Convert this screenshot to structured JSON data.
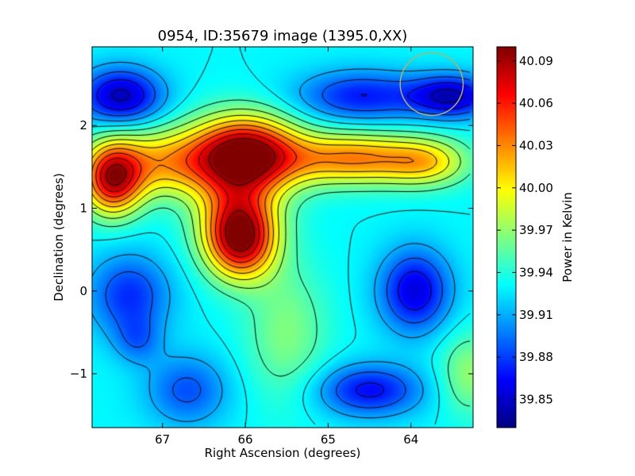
{
  "chart_data": {
    "type": "heatmap",
    "title": "0954, ID:35679 image (1395.0,XX)",
    "xlabel": "Right Ascension (degrees)",
    "ylabel": "Declination (degrees)",
    "xlim": [
      67.85,
      63.25
    ],
    "ylim": [
      -1.65,
      2.95
    ],
    "x_ticks": [
      67,
      66,
      65,
      64
    ],
    "x_tick_labels": [
      "67",
      "66",
      "65",
      "64"
    ],
    "y_ticks": [
      2,
      1,
      0,
      -1
    ],
    "y_tick_labels": [
      "2",
      "1",
      "0",
      "−1"
    ],
    "colormap": "jet",
    "contours": true,
    "grid": false,
    "colorbar": {
      "label": "Power in Kelvin",
      "range": [
        39.83,
        40.1
      ],
      "ticks": [
        40.09,
        40.06,
        40.03,
        40.0,
        39.97,
        39.94,
        39.91,
        39.88,
        39.85
      ],
      "tick_labels": [
        "40.09",
        "40.06",
        "40.03",
        "40.00",
        "39.97",
        "39.94",
        "39.91",
        "39.88",
        "39.85"
      ]
    },
    "baseline": 39.93,
    "features": [
      {
        "ra": 67.5,
        "dec": 2.35,
        "amplitude": -0.085,
        "sigma_ra": 0.35,
        "sigma_dec": 0.24
      },
      {
        "ra": 64.6,
        "dec": 2.35,
        "amplitude": -0.06,
        "sigma_ra": 0.55,
        "sigma_dec": 0.22
      },
      {
        "ra": 63.5,
        "dec": 2.35,
        "amplitude": -0.08,
        "sigma_ra": 0.35,
        "sigma_dec": 0.18
      },
      {
        "ra": 67.6,
        "dec": 1.35,
        "amplitude": 0.14,
        "sigma_ra": 0.25,
        "sigma_dec": 0.3
      },
      {
        "ra": 67.0,
        "dec": 1.55,
        "amplitude": 0.08,
        "sigma_ra": 0.5,
        "sigma_dec": 0.28
      },
      {
        "ra": 66.0,
        "dec": 1.65,
        "amplitude": 0.17,
        "sigma_ra": 0.45,
        "sigma_dec": 0.32
      },
      {
        "ra": 66.1,
        "dec": 0.9,
        "amplitude": 0.08,
        "sigma_ra": 0.35,
        "sigma_dec": 0.4
      },
      {
        "ra": 66.05,
        "dec": 0.6,
        "amplitude": 0.12,
        "sigma_ra": 0.28,
        "sigma_dec": 0.32
      },
      {
        "ra": 64.7,
        "dec": 1.6,
        "amplitude": 0.1,
        "sigma_ra": 0.6,
        "sigma_dec": 0.22
      },
      {
        "ra": 63.8,
        "dec": 1.55,
        "amplitude": 0.06,
        "sigma_ra": 0.35,
        "sigma_dec": 0.2
      },
      {
        "ra": 67.4,
        "dec": -0.05,
        "amplitude": -0.055,
        "sigma_ra": 0.35,
        "sigma_dec": 0.35
      },
      {
        "ra": 67.3,
        "dec": -0.6,
        "amplitude": -0.03,
        "sigma_ra": 0.2,
        "sigma_dec": 0.2
      },
      {
        "ra": 66.7,
        "dec": -1.2,
        "amplitude": -0.045,
        "sigma_ra": 0.35,
        "sigma_dec": 0.3
      },
      {
        "ra": 63.95,
        "dec": 0.0,
        "amplitude": -0.075,
        "sigma_ra": 0.3,
        "sigma_dec": 0.35
      },
      {
        "ra": 64.5,
        "dec": -1.2,
        "amplitude": -0.065,
        "sigma_ra": 0.45,
        "sigma_dec": 0.22
      },
      {
        "ra": 63.3,
        "dec": -1.0,
        "amplitude": 0.04,
        "sigma_ra": 0.25,
        "sigma_dec": 0.35
      },
      {
        "ra": 65.5,
        "dec": -0.5,
        "amplitude": 0.035,
        "sigma_ra": 0.35,
        "sigma_dec": 0.6
      }
    ],
    "contour_levels": [
      39.85,
      39.87,
      39.89,
      39.91,
      39.93,
      39.95,
      39.97,
      39.99,
      40.01,
      40.03,
      40.05,
      40.07,
      40.09
    ],
    "overlay_circle": {
      "ra": 63.75,
      "dec": 2.5,
      "radius_deg": 0.38,
      "color": "#b8b060"
    }
  }
}
